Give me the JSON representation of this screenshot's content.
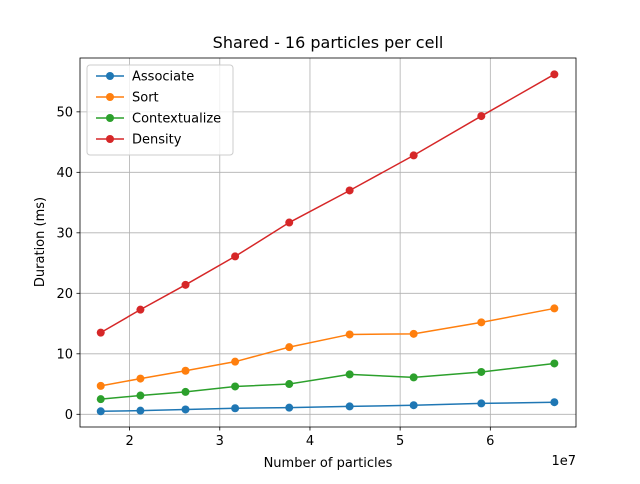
{
  "chart_data": {
    "type": "line",
    "title": "Shared - 16 particles per cell",
    "xlabel": "Number of particles",
    "ylabel": "Duration (ms)",
    "x_offset_label": "1e7",
    "x_scale": 10000000,
    "xlim": [
      14500000,
      69500000
    ],
    "ylim": [
      -2.1,
      58.9
    ],
    "x_ticks": [
      2,
      3,
      4,
      5,
      6
    ],
    "y_ticks": [
      0,
      10,
      20,
      30,
      40,
      50
    ],
    "grid": true,
    "legend_position": "upper-left",
    "x": [
      16800000,
      21200000,
      26200000,
      31700000,
      37700000,
      44400000,
      51500000,
      59000000,
      67100000
    ],
    "series": [
      {
        "name": "Associate",
        "color": "#1f77b4",
        "values": [
          0.5,
          0.6,
          0.8,
          1.0,
          1.1,
          1.3,
          1.5,
          1.8,
          2.0
        ]
      },
      {
        "name": "Sort",
        "color": "#ff7f0e",
        "values": [
          4.7,
          5.9,
          7.2,
          8.7,
          11.1,
          13.2,
          13.3,
          15.2,
          17.5
        ]
      },
      {
        "name": "Contextualize",
        "color": "#2ca02c",
        "values": [
          2.5,
          3.1,
          3.7,
          4.6,
          5.0,
          6.6,
          6.1,
          7.0,
          8.4
        ]
      },
      {
        "name": "Density",
        "color": "#d62728",
        "values": [
          13.5,
          17.3,
          21.4,
          26.1,
          31.7,
          37.0,
          42.8,
          49.3,
          56.2
        ]
      }
    ]
  }
}
